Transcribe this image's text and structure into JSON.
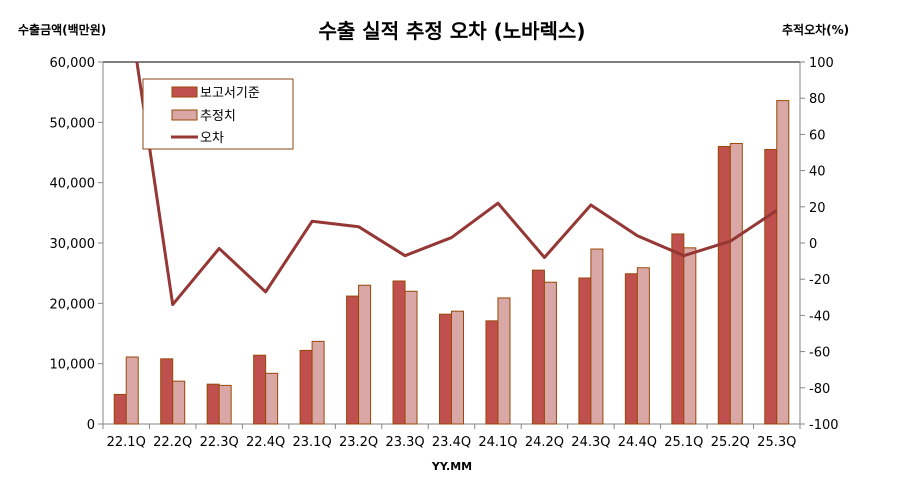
{
  "chart_data": {
    "type": "bar+line",
    "title": "수출 실적 추정 오차 (노바렉스)",
    "ylabel_left": "수출금액(백만원)",
    "ylabel_right": "추적오차(%)",
    "xlabel": "YY.MM",
    "ylim_left": [
      0,
      60000
    ],
    "ylim_right": [
      -100,
      100
    ],
    "yticks_left": [
      "0",
      "10,000",
      "20,000",
      "30,000",
      "40,000",
      "50,000",
      "60,000"
    ],
    "yticks_right": [
      "-100",
      "-80",
      "-60",
      "-40",
      "-20",
      "0",
      "20",
      "40",
      "60",
      "80",
      "100"
    ],
    "grid": false,
    "legend_position": "top-left",
    "categories": [
      "22.1Q",
      "22.2Q",
      "22.3Q",
      "22.4Q",
      "23.1Q",
      "23.2Q",
      "23.3Q",
      "23.4Q",
      "24.1Q",
      "24.2Q",
      "24.3Q",
      "24.4Q",
      "25.1Q",
      "25.2Q",
      "25.3Q"
    ],
    "series": [
      {
        "name": "보고서기준",
        "type": "bar",
        "axis": "left",
        "color": "#c0504d",
        "values": [
          4900,
          10800,
          6600,
          11400,
          12200,
          21200,
          23700,
          18200,
          17100,
          25500,
          24200,
          24900,
          31500,
          46000,
          45500
        ]
      },
      {
        "name": "추정치",
        "type": "bar",
        "axis": "left",
        "color": "#d9a7a6",
        "values": [
          11100,
          7100,
          6400,
          8400,
          13700,
          23000,
          22000,
          18700,
          20900,
          23500,
          29000,
          25900,
          29200,
          46500,
          53600
        ]
      },
      {
        "name": "오차",
        "type": "line",
        "axis": "right",
        "color": "#953735",
        "values": [
          140,
          -34,
          -3,
          -27,
          12,
          9,
          -7,
          3,
          22,
          -8,
          21,
          4,
          -7,
          1,
          18
        ]
      }
    ]
  }
}
